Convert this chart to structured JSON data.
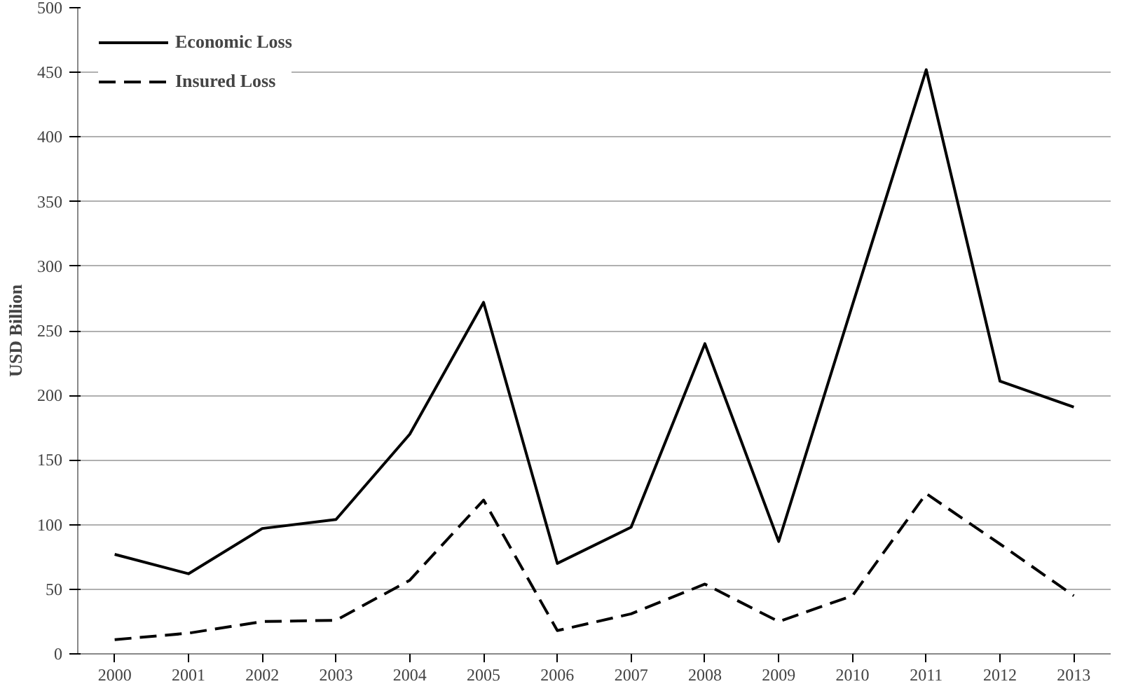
{
  "chart_data": {
    "type": "line",
    "ylabel": "USD Billion",
    "categories": [
      "2000",
      "2001",
      "2002",
      "2003",
      "2004",
      "2005",
      "2006",
      "2007",
      "2008",
      "2009",
      "2010",
      "2011",
      "2012",
      "2013"
    ],
    "series": [
      {
        "name": "Economic Loss",
        "color": "#000000",
        "line_style": "solid",
        "values": [
          77,
          62,
          97,
          104,
          170,
          272,
          70,
          98,
          240,
          87,
          270,
          452,
          211,
          191
        ]
      },
      {
        "name": "Insured Loss",
        "color": "#000000",
        "line_style": "dashed",
        "values": [
          11,
          16,
          25,
          26,
          57,
          119,
          18,
          31,
          54,
          25,
          45,
          124,
          85,
          45
        ]
      }
    ],
    "ylim": [
      0,
      500
    ],
    "yticks": [
      0,
      50,
      100,
      150,
      200,
      250,
      300,
      350,
      400,
      450,
      500
    ],
    "grid": "y",
    "legend": "top left",
    "marker": "none"
  }
}
